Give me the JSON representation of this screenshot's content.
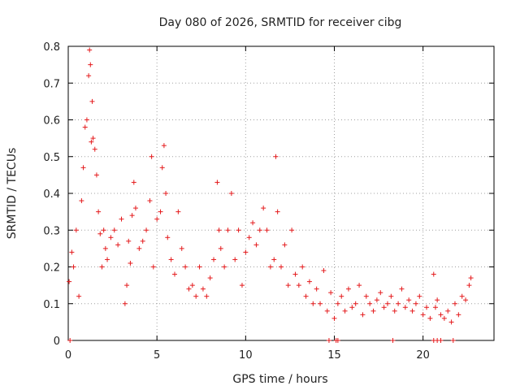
{
  "chart_data": {
    "type": "scatter",
    "title": "Day 080 of 2026, SRMTID for receiver cibg",
    "xlabel": "GPS time / hours",
    "ylabel": "SRMTID / TECUs",
    "xlim": [
      0,
      24
    ],
    "ylim": [
      0,
      0.8
    ],
    "x_ticks": [
      0,
      5,
      10,
      15,
      20
    ],
    "x_tick_labels": [
      "0",
      "5",
      "10",
      "15",
      "20"
    ],
    "y_ticks": [
      0,
      0.1,
      0.2,
      0.3,
      0.4,
      0.5,
      0.6,
      0.7,
      0.8
    ],
    "y_tick_labels": [
      "0",
      "0.1",
      "0.2",
      "0.3",
      "0.4",
      "0.5",
      "0.6",
      "0.7",
      "0.8"
    ],
    "grid": true,
    "marker": "+",
    "color": "#e41a1c",
    "series": [
      {
        "name": "SRMTID",
        "x": [
          0.05,
          0.2,
          0.3,
          0.45,
          0.6,
          0.75,
          0.85,
          0.95,
          1.05,
          1.15,
          1.2,
          1.25,
          1.3,
          1.35,
          1.4,
          1.5,
          1.6,
          1.7,
          1.8,
          1.9,
          2.0,
          2.1,
          2.2,
          2.4,
          2.6,
          2.8,
          3.0,
          3.2,
          3.3,
          3.4,
          3.5,
          3.6,
          3.7,
          3.8,
          4.0,
          4.2,
          4.4,
          4.6,
          4.7,
          4.8,
          5.0,
          5.2,
          5.3,
          5.4,
          5.5,
          5.6,
          5.8,
          6.0,
          6.2,
          6.4,
          6.6,
          6.8,
          7.0,
          7.2,
          7.4,
          7.6,
          7.8,
          8.0,
          8.2,
          8.4,
          8.5,
          8.6,
          8.8,
          9.0,
          9.2,
          9.4,
          9.6,
          9.8,
          10.0,
          10.2,
          10.4,
          10.6,
          10.8,
          11.0,
          11.2,
          11.4,
          11.6,
          11.7,
          11.8,
          12.0,
          12.2,
          12.4,
          12.6,
          12.8,
          13.0,
          13.2,
          13.4,
          13.6,
          13.8,
          14.0,
          14.2,
          14.4,
          14.6,
          14.8,
          15.0,
          15.2,
          15.4,
          15.6,
          15.8,
          16.0,
          16.2,
          16.4,
          16.6,
          16.8,
          17.0,
          17.2,
          17.4,
          17.6,
          17.8,
          18.0,
          18.2,
          18.4,
          18.6,
          18.8,
          19.0,
          19.2,
          19.4,
          19.6,
          19.8,
          20.0,
          20.2,
          20.4,
          20.6,
          20.7,
          20.8,
          21.0,
          21.2,
          21.4,
          21.6,
          21.8,
          22.0,
          22.2,
          22.4,
          22.6,
          22.7
        ],
        "y": [
          0.16,
          0.24,
          0.2,
          0.3,
          0.12,
          0.38,
          0.47,
          0.58,
          0.6,
          0.72,
          0.79,
          0.75,
          0.54,
          0.65,
          0.55,
          0.52,
          0.45,
          0.35,
          0.29,
          0.2,
          0.3,
          0.25,
          0.22,
          0.28,
          0.3,
          0.26,
          0.33,
          0.1,
          0.15,
          0.27,
          0.21,
          0.34,
          0.43,
          0.36,
          0.25,
          0.27,
          0.3,
          0.38,
          0.5,
          0.2,
          0.33,
          0.35,
          0.47,
          0.53,
          0.4,
          0.28,
          0.22,
          0.18,
          0.35,
          0.25,
          0.2,
          0.14,
          0.15,
          0.12,
          0.2,
          0.14,
          0.12,
          0.17,
          0.22,
          0.43,
          0.3,
          0.25,
          0.2,
          0.3,
          0.4,
          0.22,
          0.3,
          0.15,
          0.24,
          0.28,
          0.32,
          0.26,
          0.3,
          0.36,
          0.3,
          0.2,
          0.22,
          0.5,
          0.35,
          0.2,
          0.26,
          0.15,
          0.3,
          0.18,
          0.15,
          0.2,
          0.12,
          0.16,
          0.1,
          0.14,
          0.1,
          0.19,
          0.08,
          0.13,
          0.06,
          0.1,
          0.12,
          0.08,
          0.14,
          0.09,
          0.1,
          0.15,
          0.07,
          0.12,
          0.1,
          0.08,
          0.11,
          0.13,
          0.09,
          0.1,
          0.12,
          0.08,
          0.1,
          0.14,
          0.09,
          0.11,
          0.08,
          0.1,
          0.12,
          0.07,
          0.09,
          0.06,
          0.18,
          0.09,
          0.11,
          0.07,
          0.06,
          0.08,
          0.05,
          0.1,
          0.07,
          0.12,
          0.11,
          0.15,
          0.17
        ]
      }
    ],
    "zero_markers_x": [
      0.1,
      14.7,
      15.1,
      15.2,
      18.3,
      20.6,
      20.8,
      21.0,
      21.7
    ]
  }
}
